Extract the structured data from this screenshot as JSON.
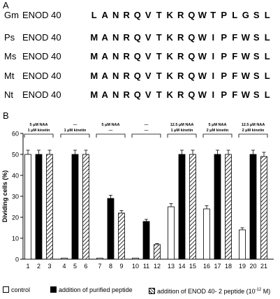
{
  "panel_a": {
    "label": "A",
    "sequences": [
      {
        "species": "Gm",
        "gene": "ENOD 40",
        "residues": [
          "L",
          "A",
          "N",
          "R",
          "Q",
          "V",
          "T",
          "K",
          "R",
          "Q",
          "W",
          "T",
          "P",
          "L",
          "G",
          "S",
          "L"
        ]
      },
      {
        "species": "Ps",
        "gene": "ENOD 40",
        "residues": [
          "M",
          "A",
          "N",
          "R",
          "Q",
          "V",
          "T",
          "K",
          "R",
          "Q",
          "W",
          "I",
          "P",
          "F",
          "W",
          "S",
          "L"
        ]
      },
      {
        "species": "Ms",
        "gene": "ENOD 40",
        "residues": [
          "M",
          "A",
          "N",
          "R",
          "Q",
          "V",
          "T",
          "K",
          "R",
          "Q",
          "W",
          "I",
          "P",
          "F",
          "W",
          "S",
          "L"
        ]
      },
      {
        "species": "Mt",
        "gene": "ENOD 40",
        "residues": [
          "M",
          "A",
          "N",
          "R",
          "Q",
          "V",
          "T",
          "K",
          "R",
          "Q",
          "W",
          "I",
          "P",
          "F",
          "W",
          "S",
          "L"
        ]
      },
      {
        "species": "Nt",
        "gene": "ENOD 40",
        "residues": [
          "M",
          "A",
          "N",
          "R",
          "Q",
          "V",
          "T",
          "K",
          "R",
          "Q",
          "W",
          "I",
          "P",
          "F",
          "W",
          "S",
          "L"
        ]
      }
    ]
  },
  "panel_b": {
    "label": "B",
    "treatments": [
      {
        "line1": "5 μM NAA",
        "line2": "1 μM kinetin"
      },
      {
        "line1": "—",
        "line2": "1 μM kinetin"
      },
      {
        "line1": "5 μM NAA",
        "line2": "—"
      },
      {
        "line1": "—",
        "line2": "—"
      },
      {
        "line1": "12.5 μM NAA",
        "line2": "1 μM kinetin"
      },
      {
        "line1": "5 μM NAA",
        "line2": "2 μM kinetin"
      },
      {
        "line1": "12.5 μM NAA",
        "line2": "2 μM kinetin"
      }
    ],
    "legend": {
      "control": "control",
      "purified": "addition of purified peptide",
      "synthetic": "addition of ENOD 40- 2 peptide (10",
      "synthetic_exp": "-12",
      "synthetic_unit": " M)"
    }
  },
  "colors": {
    "control": "#ffffff",
    "purified": "#000000",
    "synthetic": "hatched",
    "axis": "#000000"
  },
  "chart_data": {
    "type": "bar",
    "ylabel": "Dividing  cells (%)",
    "ylim": [
      0,
      60
    ],
    "yticks": [
      0,
      10,
      20,
      30,
      40,
      50,
      60
    ],
    "categories": [
      "1",
      "2",
      "3",
      "4",
      "5",
      "6",
      "7",
      "8",
      "9",
      "10",
      "11",
      "12",
      "13",
      "14",
      "15",
      "16",
      "17",
      "18",
      "19",
      "20",
      "21"
    ],
    "series": [
      {
        "name": "control",
        "fill": "white",
        "x": [
          "1",
          "4",
          "7",
          "10",
          "13",
          "16",
          "19"
        ],
        "values": [
          50,
          0.5,
          0.5,
          0.5,
          25,
          24,
          14
        ],
        "errors": [
          2,
          0,
          0,
          0,
          1.5,
          1.5,
          1
        ]
      },
      {
        "name": "addition of purified peptide",
        "fill": "black",
        "x": [
          "2",
          "5",
          "8",
          "11",
          "14",
          "17",
          "20"
        ],
        "values": [
          50,
          50,
          29,
          18,
          50,
          50,
          50
        ],
        "errors": [
          2,
          2,
          1.5,
          1,
          2,
          2,
          2
        ]
      },
      {
        "name": "addition of ENOD 40- 2 peptide",
        "fill": "hatched",
        "x": [
          "3",
          "6",
          "9",
          "12",
          "15",
          "18",
          "21"
        ],
        "values": [
          50,
          50,
          22,
          7,
          50,
          50,
          49
        ],
        "errors": [
          2,
          2,
          1.2,
          0.5,
          2,
          2,
          2
        ]
      }
    ]
  }
}
